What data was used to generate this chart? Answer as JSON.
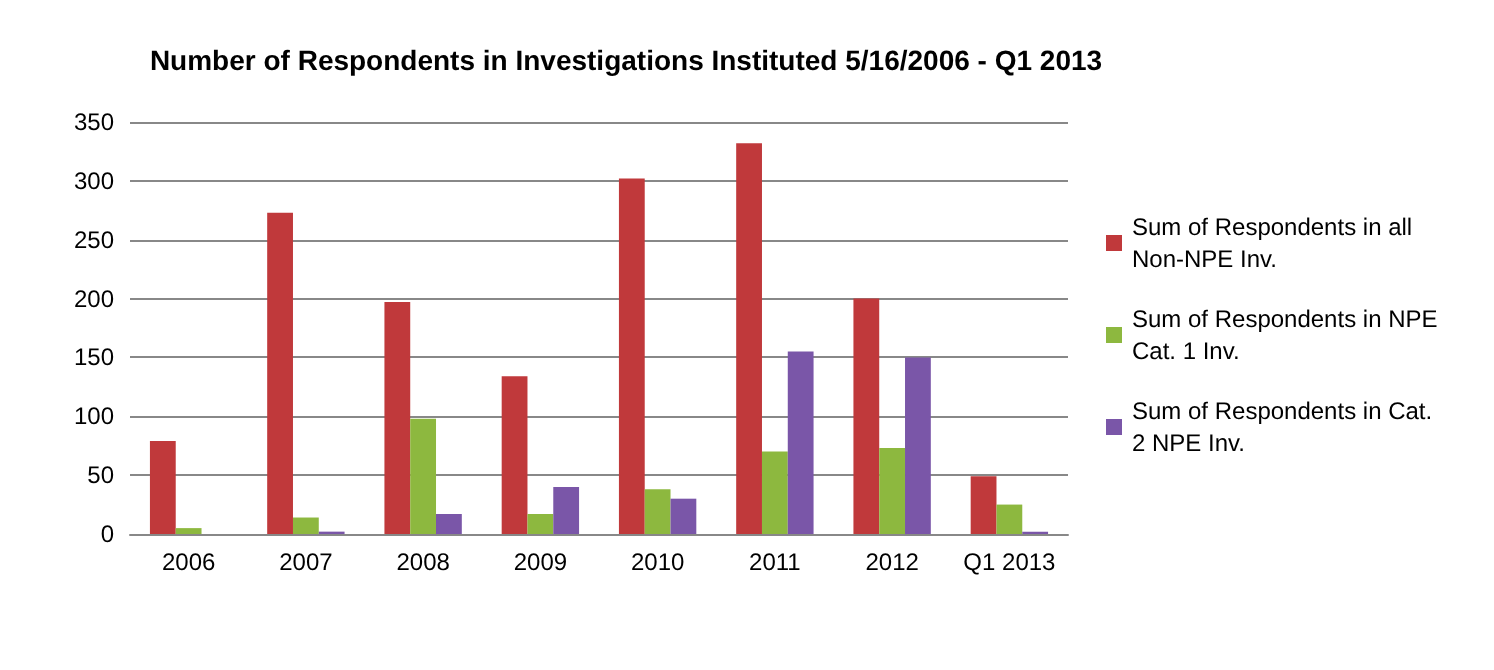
{
  "chart_data": {
    "type": "bar",
    "title": "Number of Respondents in Investigations Instituted 5/16/2006 - Q1 2013",
    "categories": [
      "2006",
      "2007",
      "2008",
      "2009",
      "2010",
      "2011",
      "2012",
      "Q1 2013"
    ],
    "series": [
      {
        "name": "Sum of Respondents in all Non-NPE Inv.",
        "color": "#c0393b",
        "values": [
          79,
          273,
          197,
          134,
          302,
          332,
          200,
          49
        ]
      },
      {
        "name": "Sum of Respondents in NPE Cat. 1 Inv.",
        "color": "#8db83f",
        "values": [
          5,
          14,
          98,
          17,
          38,
          70,
          73,
          25
        ]
      },
      {
        "name": "Sum of Respondents in Cat. 2 NPE Inv.",
        "color": "#7a56a8",
        "values": [
          0,
          2,
          17,
          40,
          30,
          155,
          150,
          2
        ]
      }
    ],
    "ylim": [
      0,
      350
    ],
    "yticks": [
      0,
      50,
      100,
      150,
      200,
      250,
      300,
      350
    ],
    "grid": "y",
    "legend": "right"
  }
}
